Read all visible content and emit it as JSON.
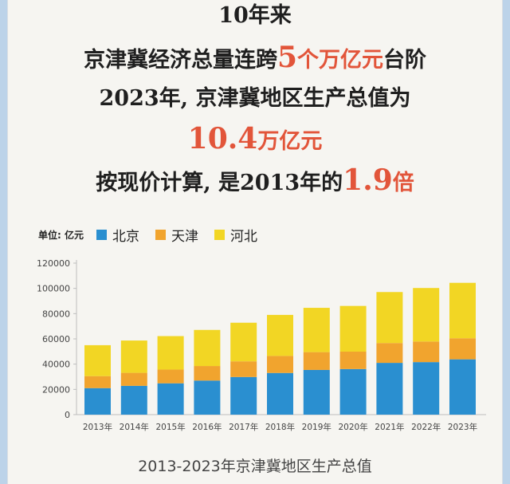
{
  "headline": {
    "line1": "10年来",
    "line2_pre": "京津冀经济总量连跨",
    "line2_num": "5",
    "line2_hl": "个万亿元",
    "line2_post": "台阶",
    "line3": "2023年, 京津冀地区生产总值为",
    "line4_num": "10.4",
    "line4_unit": "万亿元",
    "line5_pre": "按现价计算, 是2013年的",
    "line5_num": "1.9",
    "line5_unit": "倍"
  },
  "chart_data": {
    "type": "bar",
    "stacked": true,
    "unit_label": "单位: 亿元",
    "categories": [
      "2013年",
      "2014年",
      "2015年",
      "2016年",
      "2017年",
      "2018年",
      "2019年",
      "2020年",
      "2021年",
      "2022年",
      "2023年"
    ],
    "series": [
      {
        "name": "北京",
        "color": "#2a8fd0",
        "values": [
          21000,
          22800,
          24800,
          27000,
          29800,
          33000,
          35400,
          36100,
          41000,
          41600,
          43800
        ]
      },
      {
        "name": "天津",
        "color": "#f1a42e",
        "values": [
          9500,
          10300,
          10900,
          11500,
          12400,
          13500,
          14100,
          13800,
          15700,
          16300,
          16700
        ]
      },
      {
        "name": "河北",
        "color": "#f2d624",
        "values": [
          24500,
          25600,
          26500,
          28600,
          30600,
          32500,
          35100,
          36200,
          40400,
          42400,
          43900
        ]
      }
    ],
    "yticks": [
      0,
      20000,
      40000,
      60000,
      80000,
      100000,
      120000
    ],
    "ylim": [
      0,
      120000
    ],
    "grid": false,
    "legend_position": "top-left",
    "title": "2013-2023年京津冀地区生产总值"
  }
}
